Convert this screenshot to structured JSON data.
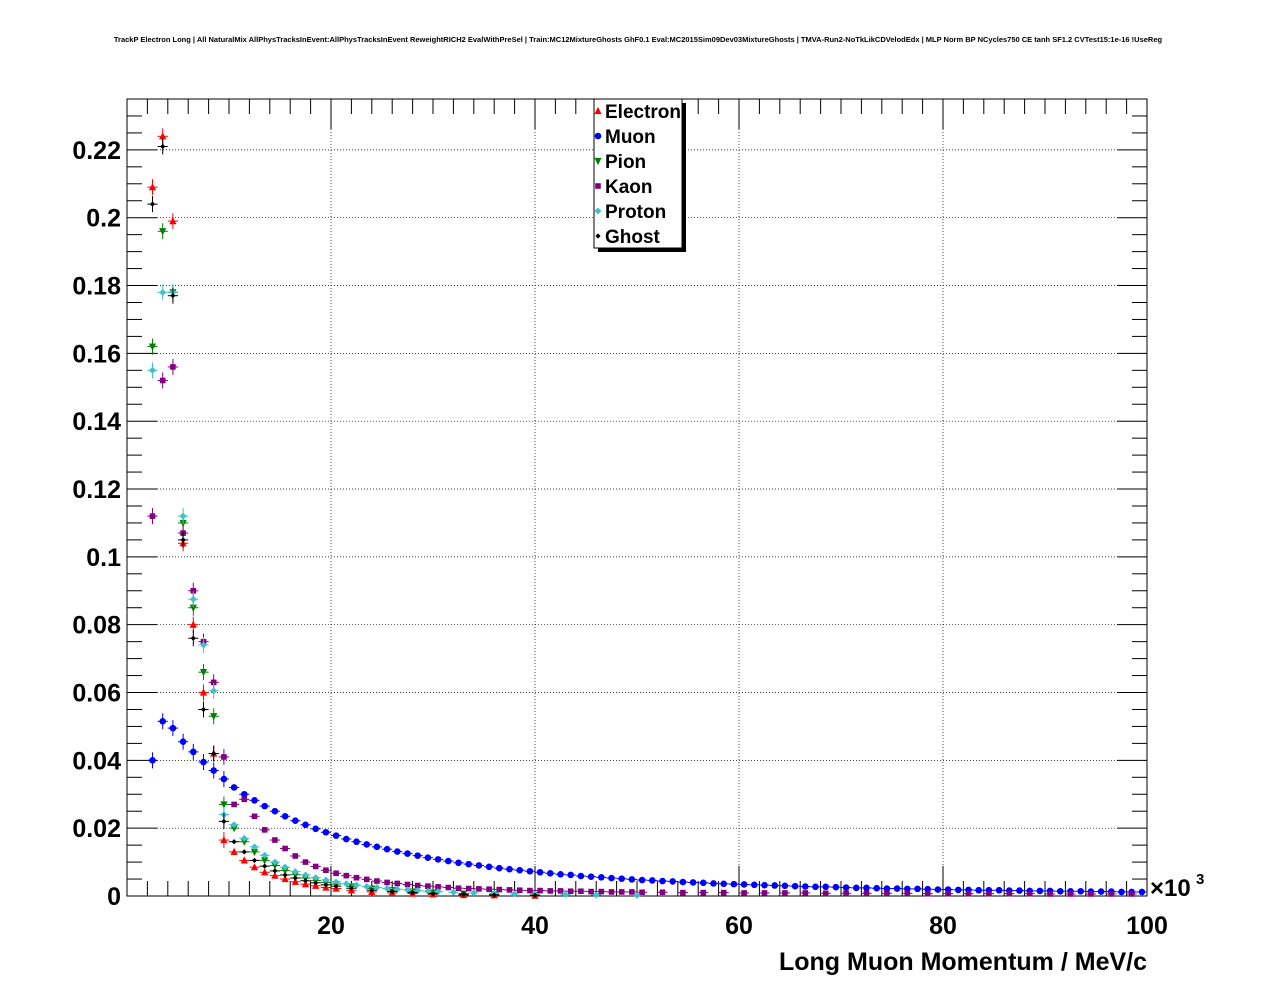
{
  "chart_data": {
    "type": "scatter",
    "title": "TrackP Electron Long | All NaturalMix AllPhysTracksInEvent:AllPhysTracksInEvent ReweightRICH2 EvalWithPreSel | Train:MC12MixtureGhosts GhF0.1 Eval:MC2015Sim09Dev03MixtureGhosts | TMVA-Run2-NoTkLikCDVelodEdx | MLP Norm BP NCycles750 CE tanh SF1.2 CVTest15:1e-16 !UseReg",
    "xlabel": "Long Muon Momentum / MeV/c",
    "ylabel": "",
    "x_exponent_label": "×10",
    "x_exponent_power": "3",
    "x_scale": 1000,
    "xlim": [
      0,
      100
    ],
    "ylim": [
      0,
      0.235
    ],
    "xticks": [
      20,
      40,
      60,
      80,
      100
    ],
    "yticks": [
      0,
      0.02,
      0.04,
      0.06,
      0.08,
      0.1,
      0.12,
      0.14,
      0.16,
      0.18,
      0.2,
      0.22
    ],
    "ytick_labels": [
      "0",
      "0.02",
      "0.04",
      "0.06",
      "0.08",
      "0.1",
      "0.12",
      "0.14",
      "0.16",
      "0.18",
      "0.2",
      "0.22"
    ],
    "xtick_labels": [
      "20",
      "40",
      "60",
      "80",
      "100"
    ],
    "grid": true,
    "legend_position": "top-center",
    "series": [
      {
        "name": "Electron",
        "color": "#ff0000",
        "marker": "triangle-up",
        "x": [
          2.5,
          3.5,
          4.5,
          5.5,
          6.5,
          7.5,
          8.5,
          9.5,
          10.5,
          11.5,
          12.5,
          13.5,
          14.5,
          15.5,
          16.5,
          17.5,
          18.5,
          19.5,
          20.5,
          22,
          24,
          26,
          28,
          30,
          33,
          36,
          40
        ],
        "y": [
          0.209,
          0.224,
          0.199,
          0.104,
          0.08,
          0.06,
          0.042,
          0.0165,
          0.013,
          0.0105,
          0.0085,
          0.007,
          0.006,
          0.005,
          0.0042,
          0.0035,
          0.003,
          0.0025,
          0.0022,
          0.0017,
          0.0012,
          0.0009,
          0.0007,
          0.0005,
          0.0003,
          0.0002,
          0.0001
        ]
      },
      {
        "name": "Muon",
        "color": "#0000ff",
        "marker": "circle",
        "x": [
          2.5,
          3.5,
          4.5,
          5.5,
          6.5,
          7.5,
          8.5,
          9.5,
          10.5,
          11.5,
          12.5,
          13.5,
          14.5,
          15.5,
          16.5,
          17.5,
          18.5,
          19.5,
          20.5,
          21.5,
          22.5,
          23.5,
          24.5,
          25.5,
          26.5,
          27.5,
          28.5,
          29.5,
          30.5,
          31.5,
          32.5,
          33.5,
          34.5,
          35.5,
          36.5,
          37.5,
          38.5,
          39.5,
          40.5,
          41.5,
          42.5,
          43.5,
          44.5,
          45.5,
          46.5,
          47.5,
          48.5,
          49.5,
          50.5,
          51.5,
          52.5,
          53.5,
          54.5,
          55.5,
          56.5,
          57.5,
          58.5,
          59.5,
          60.5,
          61.5,
          62.5,
          63.5,
          64.5,
          65.5,
          66.5,
          67.5,
          68.5,
          69.5,
          70.5,
          71.5,
          72.5,
          73.5,
          74.5,
          75.5,
          76.5,
          77.5,
          78.5,
          79.5,
          80.5,
          81.5,
          82.5,
          83.5,
          84.5,
          85.5,
          86.5,
          87.5,
          88.5,
          89.5,
          90.5,
          91.5,
          92.5,
          93.5,
          94.5,
          95.5,
          96.5,
          97.5,
          98.5,
          99.5
        ],
        "y": [
          0.04,
          0.0515,
          0.0495,
          0.0455,
          0.0425,
          0.0395,
          0.037,
          0.0345,
          0.032,
          0.03,
          0.0282,
          0.0265,
          0.025,
          0.0235,
          0.0222,
          0.021,
          0.0198,
          0.0188,
          0.0178,
          0.0168,
          0.016,
          0.0152,
          0.0145,
          0.0138,
          0.0131,
          0.0125,
          0.0119,
          0.0113,
          0.0108,
          0.0103,
          0.0098,
          0.0094,
          0.009,
          0.0086,
          0.0082,
          0.0079,
          0.0076,
          0.0073,
          0.007,
          0.0067,
          0.0064,
          0.0062,
          0.0059,
          0.0057,
          0.0055,
          0.0053,
          0.0051,
          0.0049,
          0.0047,
          0.0046,
          0.0044,
          0.0043,
          0.0041,
          0.004,
          0.0039,
          0.0037,
          0.0036,
          0.0035,
          0.0034,
          0.0033,
          0.0032,
          0.0031,
          0.003,
          0.0029,
          0.0028,
          0.0027,
          0.0027,
          0.0026,
          0.0025,
          0.0024,
          0.0024,
          0.0023,
          0.0022,
          0.0022,
          0.0021,
          0.0021,
          0.002,
          0.0019,
          0.0019,
          0.0018,
          0.0018,
          0.0017,
          0.0017,
          0.0017,
          0.0016,
          0.0016,
          0.0015,
          0.0015,
          0.0015,
          0.0014,
          0.0014,
          0.0014,
          0.0013,
          0.0013,
          0.0013,
          0.0012,
          0.0012,
          0.0012
        ]
      },
      {
        "name": "Pion",
        "color": "#008000",
        "marker": "triangle-down",
        "x": [
          2.5,
          3.5,
          4.5,
          5.5,
          6.5,
          7.5,
          8.5,
          9.5,
          10.5,
          11.5,
          12.5,
          13.5,
          14.5,
          15.5,
          16.5,
          17.5,
          18.5,
          19.5,
          20.5,
          22,
          24,
          26,
          28,
          30,
          33,
          36,
          40
        ],
        "y": [
          0.162,
          0.196,
          0.178,
          0.11,
          0.085,
          0.066,
          0.053,
          0.027,
          0.02,
          0.016,
          0.013,
          0.0105,
          0.009,
          0.0075,
          0.0063,
          0.0053,
          0.0046,
          0.004,
          0.0035,
          0.0028,
          0.0022,
          0.0017,
          0.0013,
          0.001,
          0.0007,
          0.0005,
          0.0003
        ]
      },
      {
        "name": "Kaon",
        "color": "#800080",
        "marker": "square",
        "x": [
          2.5,
          3.5,
          4.5,
          5.5,
          6.5,
          7.5,
          8.5,
          9.5,
          10.5,
          11.5,
          12.5,
          13.5,
          14.5,
          15.5,
          16.5,
          17.5,
          18.5,
          19.5,
          20.5,
          21.5,
          22.5,
          23.5,
          24.5,
          25.5,
          26.5,
          27.5,
          28.5,
          29.5,
          30.5,
          31.5,
          32.5,
          33.5,
          34.5,
          35.5,
          36.5,
          37.5,
          38.5,
          39.5,
          40.5,
          41.5,
          42.5,
          43.5,
          44.5,
          45.5,
          46.5,
          47.5,
          48.5,
          49.5,
          50.5,
          52.5,
          54.5,
          56.5,
          58.5,
          60.5,
          62.5,
          64.5,
          66.5,
          68.5,
          70.5,
          72.5,
          74.5,
          76.5,
          78.5,
          80.5,
          82.5,
          84.5,
          86.5,
          88.5,
          90.5,
          92.5,
          94.5,
          96.5,
          98.5
        ],
        "y": [
          0.112,
          0.152,
          0.156,
          0.107,
          0.09,
          0.075,
          0.063,
          0.041,
          0.027,
          0.0285,
          0.0235,
          0.0195,
          0.0165,
          0.014,
          0.0118,
          0.01,
          0.0087,
          0.0076,
          0.0067,
          0.006,
          0.0054,
          0.0049,
          0.0044,
          0.004,
          0.0037,
          0.0034,
          0.0031,
          0.0029,
          0.0027,
          0.0025,
          0.0023,
          0.0022,
          0.0021,
          0.002,
          0.0019,
          0.0018,
          0.0017,
          0.0016,
          0.0016,
          0.0015,
          0.0015,
          0.0014,
          0.0014,
          0.0013,
          0.0013,
          0.0012,
          0.0012,
          0.0012,
          0.0011,
          0.0011,
          0.001,
          0.001,
          0.001,
          0.0009,
          0.0009,
          0.0009,
          0.0009,
          0.0008,
          0.0008,
          0.0008,
          0.0008,
          0.0008,
          0.0007,
          0.0007,
          0.0007,
          0.0007,
          0.0007,
          0.0007,
          0.0006,
          0.0006,
          0.0006,
          0.0006,
          0.0006
        ]
      },
      {
        "name": "Proton",
        "color": "#40c0c8",
        "marker": "diamond",
        "x": [
          2.5,
          3.5,
          4.5,
          5.5,
          6.5,
          7.5,
          8.5,
          9.5,
          10.5,
          11.5,
          12.5,
          13.5,
          14.5,
          15.5,
          16.5,
          17.5,
          18.5,
          19.5,
          20.5,
          21.5,
          22.5,
          23.5,
          24.5,
          25.5,
          26.5,
          27.5,
          28.5,
          29.5,
          30.5,
          32,
          34,
          36,
          38,
          40,
          43,
          46,
          50
        ],
        "y": [
          0.155,
          0.178,
          0.178,
          0.112,
          0.0875,
          0.074,
          0.0605,
          0.024,
          0.021,
          0.017,
          0.0145,
          0.012,
          0.01,
          0.0085,
          0.0072,
          0.0062,
          0.0054,
          0.0047,
          0.0041,
          0.0036,
          0.0032,
          0.0028,
          0.0025,
          0.0022,
          0.002,
          0.0018,
          0.0016,
          0.0014,
          0.0013,
          0.0011,
          0.0009,
          0.0008,
          0.0006,
          0.0005,
          0.0004,
          0.0003,
          0.0002
        ]
      },
      {
        "name": "Ghost",
        "color": "#000000",
        "marker": "cross",
        "x": [
          2.5,
          3.5,
          4.5,
          5.5,
          6.5,
          7.5,
          8.5,
          9.5,
          10.5,
          11.5,
          12.5,
          13.5,
          14.5,
          15.5,
          16.5,
          17.5,
          18.5,
          19.5,
          20.5,
          22,
          24,
          26,
          28,
          30,
          33,
          36,
          40
        ],
        "y": [
          0.204,
          0.221,
          0.177,
          0.105,
          0.076,
          0.055,
          0.042,
          0.022,
          0.016,
          0.013,
          0.0105,
          0.0088,
          0.0074,
          0.0062,
          0.0053,
          0.0045,
          0.0039,
          0.0033,
          0.0029,
          0.0023,
          0.0017,
          0.0013,
          0.001,
          0.0007,
          0.0005,
          0.0003,
          0.0002
        ]
      }
    ]
  }
}
